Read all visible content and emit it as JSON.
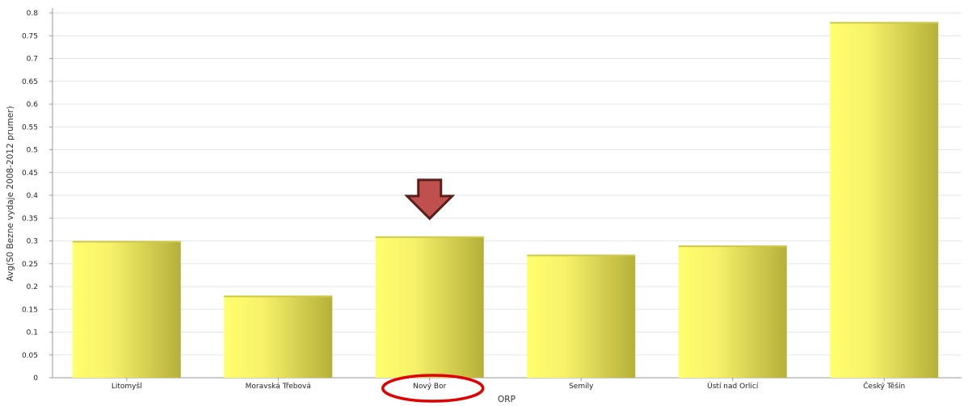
{
  "chart_data": {
    "type": "bar",
    "categories": [
      "Litomyšl",
      "Moravská Třebová",
      "Nový Bor",
      "Semily",
      "Ústí nad Orlicí",
      "Český Těšín"
    ],
    "values": [
      0.3,
      0.18,
      0.31,
      0.27,
      0.29,
      0.78
    ],
    "xlabel": "ORP",
    "ylabel": "Avg(S0 Bezne vydaje 2008-2012 prumer)",
    "ylim": [
      0,
      0.8
    ],
    "yticks": [
      "0",
      "0.05",
      "0.1",
      "0.15",
      "0.2",
      "0.25",
      "0.3",
      "0.35",
      "0.4",
      "0.45",
      "0.5",
      "0.55",
      "0.6",
      "0.65",
      "0.7",
      "0.75",
      "0.8"
    ],
    "grid": true,
    "highlight_category": "Nový Bor"
  },
  "colors": {
    "bar_light": "#ffff6e",
    "bar_dark": "#b5b03a",
    "bar_top": "#cfc94a",
    "arrow_fill": "#c0504d",
    "arrow_stroke": "#5a1f1c",
    "circle": "#e00000",
    "grid": "#e6e6e6",
    "axis": "#9a9a9a"
  },
  "annotations": {
    "arrow": "down-arrow-icon",
    "circle": "highlight-circle"
  }
}
